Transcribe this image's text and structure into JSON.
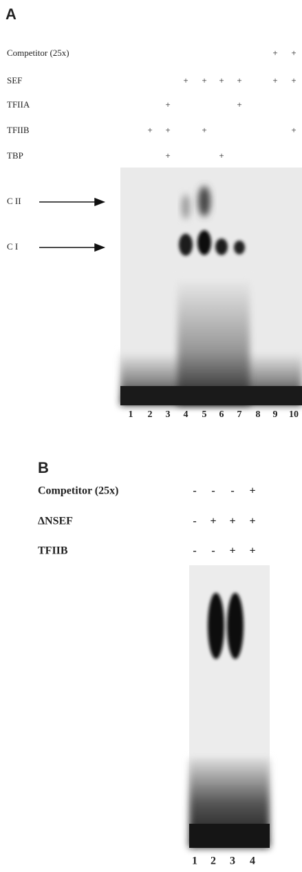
{
  "panel_a": {
    "label": "A",
    "rows": [
      {
        "label": "Competitor (25x)",
        "marks": [
          null,
          null,
          null,
          null,
          null,
          null,
          null,
          null,
          "+",
          "+"
        ]
      },
      {
        "label": "SEF",
        "marks": [
          null,
          null,
          null,
          "+",
          "+",
          "+",
          "+",
          null,
          "+",
          "+"
        ]
      },
      {
        "label": "TFIIA",
        "marks": [
          null,
          null,
          "+",
          null,
          null,
          null,
          "+",
          null,
          null,
          null
        ]
      },
      {
        "label": "TFIIB",
        "marks": [
          null,
          "+",
          "+",
          null,
          "+",
          null,
          null,
          null,
          null,
          "+"
        ]
      },
      {
        "label": "TBP",
        "marks": [
          null,
          null,
          "+",
          null,
          null,
          "+",
          null,
          null,
          null,
          null
        ]
      }
    ],
    "arrows": [
      "C II",
      "C I"
    ],
    "lanes": [
      "1",
      "2",
      "3",
      "4",
      "5",
      "6",
      "7",
      "8",
      "9",
      "10"
    ]
  },
  "panel_b": {
    "label": "B",
    "rows": [
      {
        "label": "Competitor (25x)",
        "marks": [
          "-",
          "-",
          "-",
          "+"
        ]
      },
      {
        "label": "ΔNSEF",
        "marks": [
          "-",
          "+",
          "+",
          "+"
        ]
      },
      {
        "label": "TFIIB",
        "marks": [
          "-",
          "-",
          "+",
          "+"
        ]
      }
    ],
    "lanes": [
      "1",
      "2",
      "3",
      "4"
    ]
  }
}
